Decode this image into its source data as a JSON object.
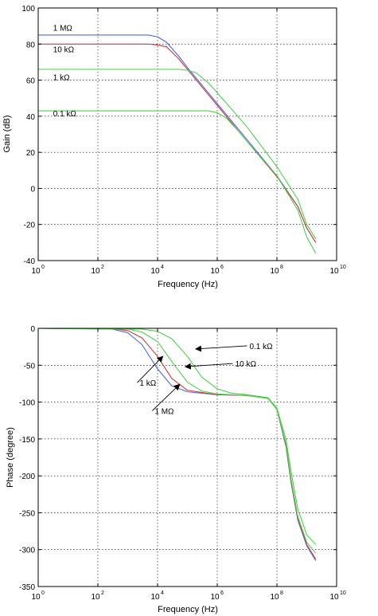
{
  "colors": {
    "blue": "#5068e6",
    "red": "#d03a3a",
    "green": "#4cd24c",
    "axis": "#000000",
    "grid": "#000000"
  },
  "chart_data": [
    {
      "type": "line",
      "xlabel": "Frequency (Hz)",
      "ylabel": "Gain (dB)",
      "xscale": "log",
      "xlim": [
        1,
        10000000000
      ],
      "ylim": [
        -40,
        100
      ],
      "grid": true,
      "x_ticks": [
        {
          "value": 1,
          "base": "10",
          "exp": "0"
        },
        {
          "value": 100,
          "base": "10",
          "exp": "2"
        },
        {
          "value": 10000,
          "base": "10",
          "exp": "4"
        },
        {
          "value": 1000000,
          "base": "10",
          "exp": "6"
        },
        {
          "value": 100000000,
          "base": "10",
          "exp": "8"
        },
        {
          "value": 10000000000,
          "base": "10",
          "exp": "10"
        }
      ],
      "y_ticks": [
        "-40",
        "-20",
        "0",
        "20",
        "40",
        "60",
        "80",
        "100"
      ],
      "series": [
        {
          "name": "1 MΩ",
          "color": "blue",
          "label": "1 MΩ",
          "x": [
            1,
            5000,
            10000,
            20000,
            50000,
            100000,
            1000000,
            10000000,
            100000000,
            500000000,
            1000000000,
            2000000000
          ],
          "y": [
            85,
            85,
            84,
            81,
            73.5,
            67,
            47,
            27,
            7,
            -10,
            -22,
            -30
          ]
        },
        {
          "name": "10 kΩ",
          "color": "red",
          "label": "10 kΩ",
          "x": [
            1,
            5000,
            10000,
            20000,
            50000,
            100000,
            1000000,
            10000000,
            100000000,
            500000000,
            1000000000,
            2000000000
          ],
          "y": [
            80,
            80,
            79.5,
            78.5,
            72,
            66,
            46,
            26,
            6.5,
            -10,
            -22,
            -30
          ]
        },
        {
          "name": "1 kΩ",
          "color": "green",
          "label": "1 kΩ",
          "x": [
            1,
            50000,
            100000,
            200000,
            500000,
            1000000,
            10000000,
            100000000,
            500000000,
            1000000000,
            2000000000
          ],
          "y": [
            66,
            66,
            65.5,
            64,
            58.5,
            53,
            34,
            12,
            -6,
            -20,
            -28
          ]
        },
        {
          "name": "0.1 kΩ",
          "color": "green",
          "label": "0.1 kΩ",
          "x": [
            1,
            500000,
            1000000,
            2000000,
            5000000,
            10000000,
            100000000,
            500000000,
            1000000000,
            2000000000
          ],
          "y": [
            43,
            43,
            42,
            39,
            32,
            26,
            7,
            -12,
            -27,
            -36
          ]
        }
      ],
      "annotations": [
        {
          "text": "1 MΩ",
          "x": 3.16,
          "y": 87.5
        },
        {
          "text": "10 kΩ",
          "x": 3.16,
          "y": 75.5
        },
        {
          "text": "1 kΩ",
          "x": 3.16,
          "y": 60
        },
        {
          "text": "0.1 kΩ",
          "x": 3.16,
          "y": 40
        }
      ]
    },
    {
      "type": "line",
      "xlabel": "Frequency (Hz)",
      "ylabel": "Phase (degree)",
      "xscale": "log",
      "xlim": [
        1,
        10000000000
      ],
      "ylim": [
        -350,
        0
      ],
      "grid": true,
      "x_ticks": [
        {
          "value": 1,
          "base": "10",
          "exp": "0"
        },
        {
          "value": 100,
          "base": "10",
          "exp": "2"
        },
        {
          "value": 10000,
          "base": "10",
          "exp": "4"
        },
        {
          "value": 1000000,
          "base": "10",
          "exp": "6"
        },
        {
          "value": 100000000,
          "base": "10",
          "exp": "8"
        },
        {
          "value": 10000000000,
          "base": "10",
          "exp": "10"
        }
      ],
      "y_ticks": [
        "-350",
        "-300",
        "-250",
        "-200",
        "-150",
        "-100",
        "-50",
        "0"
      ],
      "series": [
        {
          "name": "1 MΩ",
          "color": "blue",
          "x": [
            1,
            300,
            1000,
            3000,
            10000,
            30000,
            100000,
            1000000,
            10000000,
            50000000,
            100000000,
            200000000,
            300000000,
            500000000,
            1000000000,
            2000000000
          ],
          "y": [
            0,
            -1,
            -6,
            -22,
            -55,
            -78,
            -86,
            -90,
            -91,
            -95,
            -110,
            -160,
            -210,
            -260,
            -295,
            -315
          ]
        },
        {
          "name": "10 kΩ",
          "color": "red",
          "x": [
            1,
            300,
            1000,
            3000,
            10000,
            30000,
            100000,
            1000000,
            10000000,
            50000000,
            100000000,
            200000000,
            300000000,
            500000000,
            1000000000,
            2000000000
          ],
          "y": [
            0,
            -0.5,
            -3,
            -13,
            -38,
            -68,
            -84,
            -90,
            -91,
            -95,
            -110,
            -158,
            -208,
            -258,
            -293,
            -313
          ]
        },
        {
          "name": "1 kΩ",
          "color": "green",
          "x": [
            1,
            1000,
            3000,
            10000,
            30000,
            100000,
            300000,
            1000000,
            10000000,
            50000000,
            100000000,
            200000000,
            300000000,
            500000000,
            1000000000,
            2000000000
          ],
          "y": [
            0,
            -1,
            -5,
            -18,
            -45,
            -73,
            -85,
            -89,
            -91,
            -95,
            -110,
            -156,
            -205,
            -255,
            -290,
            -305
          ]
        },
        {
          "name": "0.1 kΩ",
          "color": "green",
          "x": [
            1,
            3000,
            10000,
            30000,
            100000,
            300000,
            1000000,
            3000000,
            10000000,
            50000000,
            100000000,
            200000000,
            300000000,
            500000000,
            1000000000,
            2000000000
          ],
          "y": [
            0,
            -1,
            -4,
            -14,
            -38,
            -66,
            -82,
            -88,
            -90,
            -94,
            -108,
            -150,
            -195,
            -245,
            -280,
            -293
          ]
        }
      ],
      "annotations": [
        {
          "text": "0.1 kΩ",
          "x": 12000000,
          "y": -28,
          "arrow_to_x": 190000,
          "arrow_to_y": -28
        },
        {
          "text": "10 kΩ",
          "x": 4000000,
          "y": -52,
          "arrow_to_x": 85000,
          "arrow_to_y": -52
        },
        {
          "text": "1 kΩ",
          "x": 2500,
          "y": -78,
          "arrow_to_x": 15000,
          "arrow_to_y": -38
        },
        {
          "text": "1 MΩ",
          "x": 8000,
          "y": -116,
          "arrow_to_x": 55000,
          "arrow_to_y": -76
        }
      ]
    }
  ]
}
